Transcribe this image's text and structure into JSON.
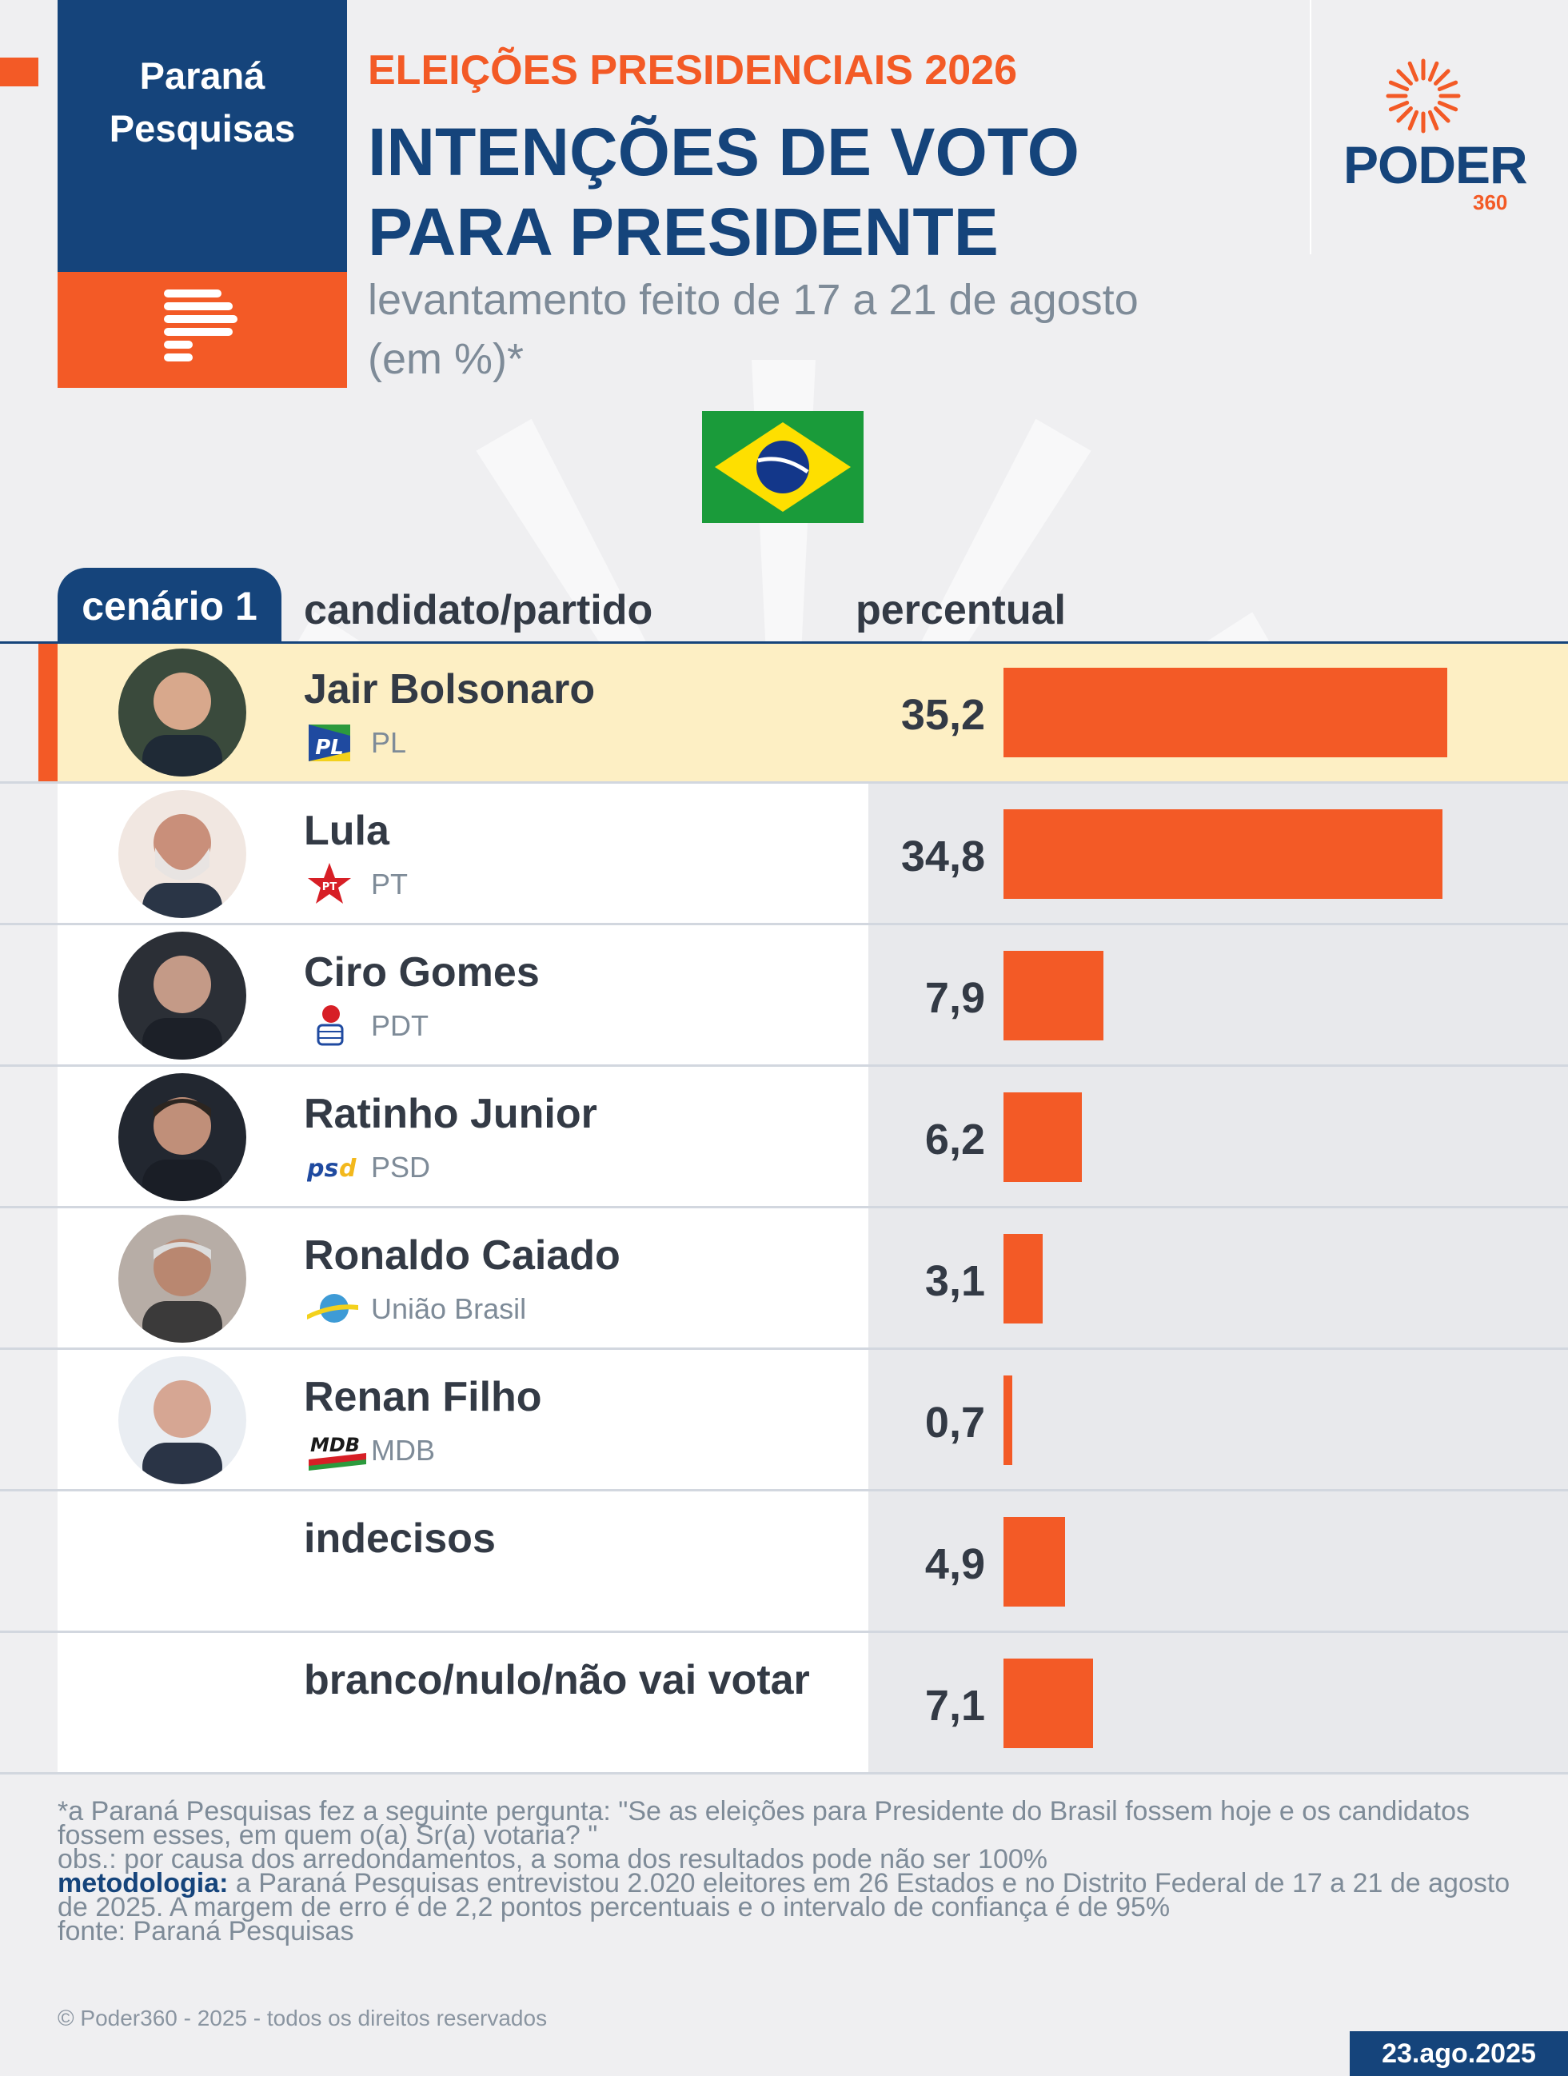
{
  "header": {
    "institute": "Paraná Pesquisas",
    "kicker": "ELEIÇÕES PRESIDENCIAIS 2026",
    "title_line1": "INTENÇÕES DE VOTO",
    "title_line2": "PARA PRESIDENTE",
    "subtitle_line1": "levantamento feito de 17 a 21 de agosto",
    "subtitle_line2": "(em %)*",
    "brand": "PODER",
    "brand_sub": "360"
  },
  "table": {
    "scenario": "cenário 1",
    "col_candidate": "candidato/partido",
    "col_percent": "percentual"
  },
  "colors": {
    "navy": "#15447b",
    "orange": "#f35a26",
    "highlight": "#fdefc4"
  },
  "chart_data": {
    "type": "bar",
    "orientation": "horizontal",
    "xlim": [
      0,
      35.2
    ],
    "categories": [
      "Jair Bolsonaro",
      "Lula",
      "Ciro Gomes",
      "Ratinho Junior",
      "Ronaldo Caiado",
      "Renan Filho",
      "indecisos",
      "branco/nulo/não vai votar"
    ],
    "values": [
      35.2,
      34.8,
      7.9,
      6.2,
      3.1,
      0.7,
      4.9,
      7.1
    ],
    "value_labels": [
      "35,2",
      "34,8",
      "7,9",
      "6,2",
      "3,1",
      "0,7",
      "4,9",
      "7,1"
    ],
    "parties": [
      "PL",
      "PT",
      "PDT",
      "PSD",
      "União Brasil",
      "MDB",
      "",
      ""
    ],
    "highlighted": "Jair Bolsonaro"
  },
  "footer": {
    "note1": "*a Paraná Pesquisas fez a seguinte pergunta: \"Se as eleições para Presidente do Brasil fossem hoje e os candidatos fossem esses, em quem o(a) Sr(a) votaria? \"",
    "note2": "obs.: por causa dos arredondamentos, a soma dos resultados pode não ser 100%",
    "method_label": "metodologia:",
    "method_text": "a Paraná Pesquisas entrevistou 2.020 eleitores em 26 Estados e no Distrito Federal de 17 a 21 de agosto de 2025. A margem de erro é de 2,2 pontos percentuais e o intervalo de confiança é de 95%",
    "source": "fonte: Paraná Pesquisas",
    "copyright": "© Poder360 - 2025 - todos os direitos reservados",
    "date": "23.ago.2025"
  }
}
